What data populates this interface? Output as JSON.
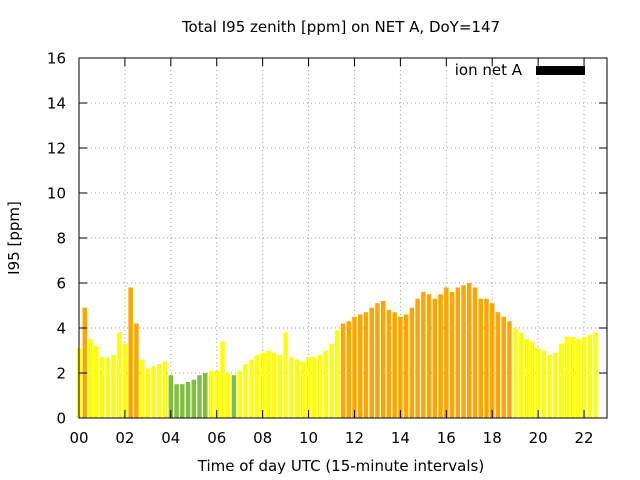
{
  "chart_data": {
    "type": "bar",
    "title": "Total I95 zenith [ppm] on NET A, DoY=147",
    "xlabel": "Time of day UTC (15-minute intervals)",
    "ylabel": "I95 [ppm]",
    "xlim": [
      0,
      23
    ],
    "ylim": [
      0,
      16
    ],
    "x_ticks": [
      {
        "value": 0,
        "label": "00"
      },
      {
        "value": 2,
        "label": "02"
      },
      {
        "value": 4,
        "label": "04"
      },
      {
        "value": 6,
        "label": "06"
      },
      {
        "value": 8,
        "label": "08"
      },
      {
        "value": 10,
        "label": "10"
      },
      {
        "value": 12,
        "label": "12"
      },
      {
        "value": 14,
        "label": "14"
      },
      {
        "value": 16,
        "label": "16"
      },
      {
        "value": 18,
        "label": "18"
      },
      {
        "value": 20,
        "label": "20"
      },
      {
        "value": 22,
        "label": "22"
      }
    ],
    "y_ticks": [
      {
        "value": 0,
        "label": "0"
      },
      {
        "value": 2,
        "label": "2"
      },
      {
        "value": 4,
        "label": "4"
      },
      {
        "value": 6,
        "label": "6"
      },
      {
        "value": 8,
        "label": "8"
      },
      {
        "value": 10,
        "label": "10"
      },
      {
        "value": 12,
        "label": "12"
      },
      {
        "value": 14,
        "label": "14"
      },
      {
        "value": 16,
        "label": "16"
      }
    ],
    "grid": true,
    "legend": {
      "label": "ion net A",
      "position": "top-right",
      "color": "#000000"
    },
    "colors": {
      "yellow": "#ffff00",
      "green": "#7fbf3f",
      "orange": "#ffa500"
    },
    "interval_hours": 0.25,
    "values": [
      3.1,
      4.9,
      3.5,
      3.2,
      2.7,
      2.7,
      2.8,
      3.8,
      3.3,
      5.8,
      4.2,
      2.6,
      2.2,
      2.3,
      2.4,
      2.5,
      1.9,
      1.5,
      1.5,
      1.6,
      1.7,
      1.9,
      2.0,
      2.1,
      2.1,
      3.4,
      2.0,
      1.9,
      2.1,
      2.4,
      2.6,
      2.8,
      2.9,
      3.0,
      2.9,
      2.8,
      3.8,
      2.7,
      2.6,
      2.5,
      2.7,
      2.7,
      2.8,
      3.0,
      3.3,
      3.9,
      4.2,
      4.3,
      4.5,
      4.6,
      4.7,
      4.9,
      5.1,
      5.2,
      4.8,
      4.7,
      4.5,
      4.6,
      4.9,
      5.3,
      5.6,
      5.5,
      5.3,
      5.5,
      5.8,
      5.6,
      5.8,
      5.9,
      6.0,
      5.8,
      5.3,
      5.3,
      5.1,
      4.7,
      4.5,
      4.3,
      4.0,
      3.8,
      3.5,
      3.4,
      3.1,
      3.0,
      2.8,
      2.9,
      3.3,
      3.6,
      3.6,
      3.5,
      3.6,
      3.7,
      3.8
    ],
    "bar_colors": [
      "yellow",
      "orange",
      "yellow",
      "yellow",
      "yellow",
      "yellow",
      "yellow",
      "yellow",
      "yellow",
      "orange",
      "orange",
      "yellow",
      "yellow",
      "yellow",
      "yellow",
      "yellow",
      "green",
      "green",
      "green",
      "green",
      "green",
      "green",
      "green",
      "yellow",
      "yellow",
      "yellow",
      "yellow",
      "green",
      "yellow",
      "yellow",
      "yellow",
      "yellow",
      "yellow",
      "yellow",
      "yellow",
      "yellow",
      "yellow",
      "yellow",
      "yellow",
      "yellow",
      "yellow",
      "yellow",
      "yellow",
      "yellow",
      "yellow",
      "yellow",
      "orange",
      "orange",
      "orange",
      "orange",
      "orange",
      "orange",
      "orange",
      "orange",
      "orange",
      "orange",
      "orange",
      "orange",
      "orange",
      "orange",
      "orange",
      "orange",
      "orange",
      "orange",
      "orange",
      "orange",
      "orange",
      "orange",
      "orange",
      "orange",
      "orange",
      "orange",
      "orange",
      "orange",
      "orange",
      "orange",
      "yellow",
      "yellow",
      "yellow",
      "yellow",
      "yellow",
      "yellow",
      "yellow",
      "yellow",
      "yellow",
      "yellow",
      "yellow",
      "yellow",
      "yellow",
      "yellow",
      "yellow"
    ]
  }
}
